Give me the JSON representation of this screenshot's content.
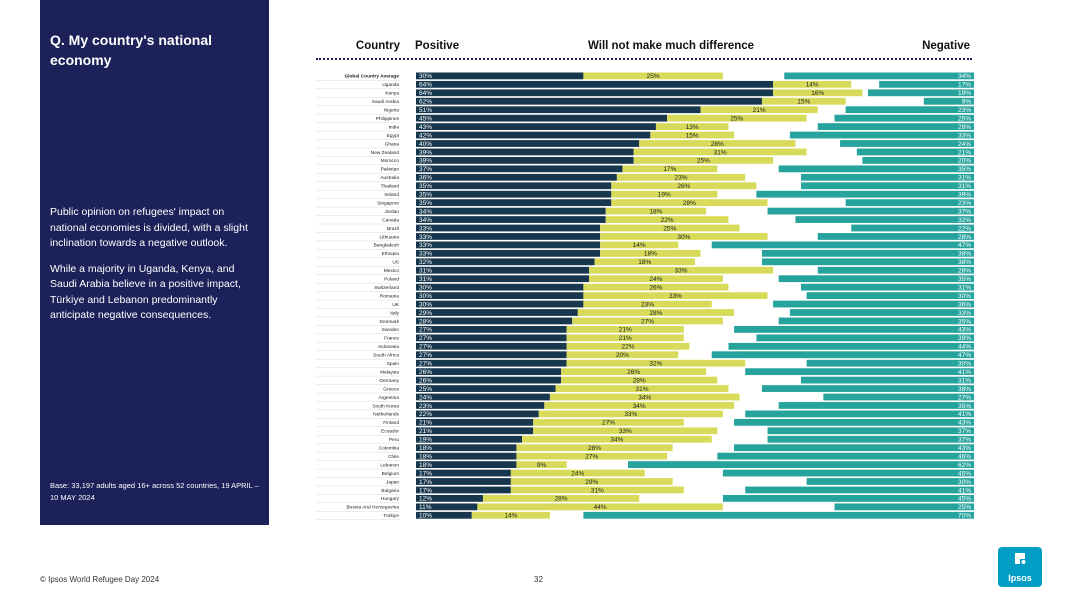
{
  "panel": {
    "title": "Q. My country's national economy",
    "paragraph1": "Public opinion on refugees' impact on national economies is divided, with a slight inclination towards a negative outlook.",
    "paragraph2": "While a majority in Uganda, Kenya, and Saudi Arabia believe in a positive impact, Türkiye and Lebanon predominantly anticipate negative consequences.",
    "base": "Base: 33,197 adults aged 16+ across 52 countries, 19 APRIL – 10 MAY 2024"
  },
  "headers": {
    "country": "Country",
    "positive": "Positive",
    "neutral": "Will not make much difference",
    "negative": "Negative"
  },
  "footer": {
    "source": "© Ipsos World Refugee Day 2024",
    "page": "32",
    "logo": "Ipsos"
  },
  "colors": {
    "panel": "#1c2159",
    "positive": "#16374d",
    "neutral": "#d8da5a",
    "negative": "#27a39e",
    "gap": "#ffffff"
  },
  "chart_data": {
    "type": "bar",
    "orientation": "horizontal-stacked",
    "title": "Q. My country's national economy",
    "xlabel": "",
    "ylabel": "Country",
    "xlim": [
      0,
      100
    ],
    "series_names": [
      "Positive",
      "Will not make much difference",
      "Negative"
    ],
    "categories": [
      "Global Country Average",
      "Uganda",
      "Kenya",
      "Saudi Arabia",
      "Nigeria",
      "Philippines",
      "India",
      "Egypt",
      "Ghana",
      "New Zealand",
      "Morocco",
      "Pakistan",
      "Australia",
      "Thailand",
      "Ireland",
      "Singapore",
      "Jordan",
      "Canada",
      "Brazil",
      "Lithuania",
      "Bangladesh",
      "Ethiopia",
      "US",
      "Mexico",
      "Poland",
      "Switzerland",
      "Romania",
      "UK",
      "Italy",
      "Denmark",
      "Sweden",
      "France",
      "Indonesia",
      "South Africa",
      "Spain",
      "Malaysia",
      "Germany",
      "Greece",
      "Argentina",
      "South Korea",
      "Netherlands",
      "Finland",
      "Ecuador",
      "Peru",
      "Colombia",
      "Chile",
      "Lebanon",
      "Belgium",
      "Japan",
      "Bulgaria",
      "Hungary",
      "Bosnia And Herzegovina",
      "Türkiye"
    ],
    "positive": [
      30,
      64,
      64,
      62,
      51,
      45,
      43,
      42,
      40,
      39,
      39,
      37,
      36,
      35,
      35,
      35,
      34,
      34,
      33,
      33,
      33,
      33,
      32,
      31,
      31,
      30,
      30,
      30,
      29,
      28,
      27,
      27,
      27,
      27,
      27,
      26,
      26,
      25,
      24,
      23,
      22,
      21,
      21,
      19,
      18,
      18,
      18,
      17,
      17,
      17,
      12,
      11,
      10
    ],
    "neutral": [
      25,
      14,
      16,
      15,
      21,
      25,
      13,
      15,
      28,
      31,
      25,
      17,
      23,
      26,
      19,
      28,
      18,
      22,
      25,
      30,
      14,
      18,
      18,
      33,
      24,
      26,
      33,
      23,
      28,
      27,
      21,
      21,
      22,
      20,
      32,
      26,
      28,
      31,
      34,
      34,
      33,
      27,
      33,
      34,
      28,
      27,
      9,
      24,
      29,
      31,
      28,
      44,
      14
    ],
    "negative": [
      34,
      17,
      19,
      9,
      23,
      25,
      28,
      33,
      24,
      21,
      20,
      35,
      31,
      31,
      39,
      23,
      37,
      32,
      22,
      28,
      47,
      38,
      38,
      28,
      35,
      31,
      30,
      36,
      33,
      35,
      43,
      39,
      44,
      47,
      30,
      41,
      31,
      38,
      27,
      35,
      41,
      43,
      37,
      37,
      43,
      46,
      62,
      45,
      30,
      41,
      45,
      25,
      70
    ]
  }
}
